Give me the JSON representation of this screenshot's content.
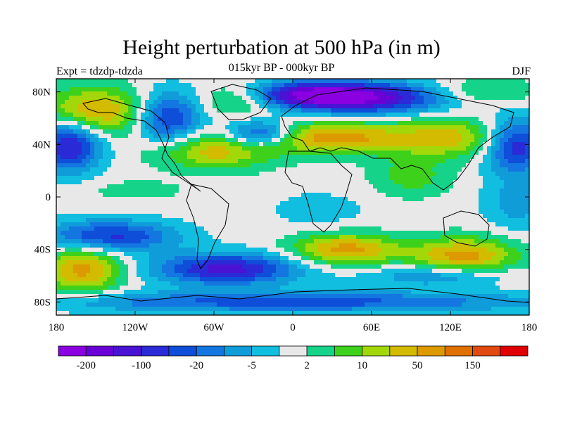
{
  "title": "Height perturbation at 500 hPa (in m)",
  "subtitle": "015kyr BP - 000kyr BP",
  "left_label": "Expt = tdzdp-tdzda",
  "right_label": "DJF",
  "axes": {
    "x_ticks": [
      {
        "value": -180,
        "label": "180"
      },
      {
        "value": -120,
        "label": "120W"
      },
      {
        "value": -60,
        "label": "60W"
      },
      {
        "value": 0,
        "label": "0"
      },
      {
        "value": 60,
        "label": "60E"
      },
      {
        "value": 120,
        "label": "120E"
      },
      {
        "value": 180,
        "label": "180"
      }
    ],
    "y_ticks": [
      {
        "value": 80,
        "label": "80N"
      },
      {
        "value": 40,
        "label": "40N"
      },
      {
        "value": 0,
        "label": "0"
      },
      {
        "value": -40,
        "label": "40S"
      },
      {
        "value": -80,
        "label": "80S"
      }
    ],
    "lon_range": [
      -180,
      180
    ],
    "lat_range": [
      -90,
      90
    ]
  },
  "colorbar": {
    "colors": [
      "#8a00e0",
      "#6a00d6",
      "#4a12d2",
      "#2a2ad6",
      "#0f4ed8",
      "#1476e0",
      "#0f9cd9",
      "#12bedf",
      "#e8e8e8",
      "#15d48a",
      "#3ed11c",
      "#a2d80a",
      "#d2bb00",
      "#dc9a00",
      "#e07000",
      "#e04a10",
      "#e00000"
    ],
    "labels": [
      {
        "boundary": 1,
        "text": "-200"
      },
      {
        "boundary": 3,
        "text": "-100"
      },
      {
        "boundary": 5,
        "text": "-20"
      },
      {
        "boundary": 7,
        "text": "-5"
      },
      {
        "boundary": 9,
        "text": "2"
      },
      {
        "boundary": 11,
        "text": "10"
      },
      {
        "boundary": 13,
        "text": "50"
      },
      {
        "boundary": 15,
        "text": "150"
      }
    ]
  },
  "field": {
    "base_level": 8,
    "blobs": [
      {
        "lon": -150,
        "lat": 65,
        "rx": 40,
        "ry": 18,
        "amp": 5
      },
      {
        "lon": -95,
        "lat": 60,
        "rx": 25,
        "ry": 20,
        "amp": -5
      },
      {
        "lon": -60,
        "lat": 35,
        "rx": 45,
        "ry": 14,
        "amp": 4
      },
      {
        "lon": -40,
        "lat": 75,
        "rx": 30,
        "ry": 12,
        "amp": 3
      },
      {
        "lon": 10,
        "lat": 78,
        "rx": 50,
        "ry": 10,
        "amp": -6
      },
      {
        "lon": -25,
        "lat": 48,
        "rx": 25,
        "ry": 10,
        "amp": -5
      },
      {
        "lon": 30,
        "lat": 45,
        "rx": 50,
        "ry": 12,
        "amp": 5
      },
      {
        "lon": 60,
        "lat": 75,
        "rx": 60,
        "ry": 12,
        "amp": -6
      },
      {
        "lon": 120,
        "lat": 45,
        "rx": 50,
        "ry": 15,
        "amp": 4
      },
      {
        "lon": 170,
        "lat": 40,
        "rx": 25,
        "ry": 20,
        "amp": -6
      },
      {
        "lon": -170,
        "lat": 40,
        "rx": 25,
        "ry": 20,
        "amp": -6
      },
      {
        "lon": 145,
        "lat": 80,
        "rx": 40,
        "ry": 10,
        "amp": 2
      },
      {
        "lon": -140,
        "lat": -30,
        "rx": 50,
        "ry": 12,
        "amp": -5
      },
      {
        "lon": -160,
        "lat": -55,
        "rx": 30,
        "ry": 18,
        "amp": 5
      },
      {
        "lon": -50,
        "lat": -55,
        "rx": 55,
        "ry": 12,
        "amp": -6
      },
      {
        "lon": 40,
        "lat": -40,
        "rx": 40,
        "ry": 12,
        "amp": 5
      },
      {
        "lon": 130,
        "lat": -45,
        "rx": 40,
        "ry": 14,
        "amp": 5
      },
      {
        "lon": 110,
        "lat": -60,
        "rx": 50,
        "ry": 8,
        "amp": -3
      },
      {
        "lon": 0,
        "lat": -80,
        "rx": 200,
        "ry": 8,
        "amp": -4
      },
      {
        "lon": 90,
        "lat": 15,
        "rx": 30,
        "ry": 15,
        "amp": 2
      },
      {
        "lon": 170,
        "lat": -5,
        "rx": 25,
        "ry": 20,
        "amp": -2
      },
      {
        "lon": -120,
        "lat": 5,
        "rx": 40,
        "ry": 8,
        "amp": 1
      },
      {
        "lon": 20,
        "lat": -10,
        "rx": 40,
        "ry": 15,
        "amp": -1
      }
    ]
  }
}
